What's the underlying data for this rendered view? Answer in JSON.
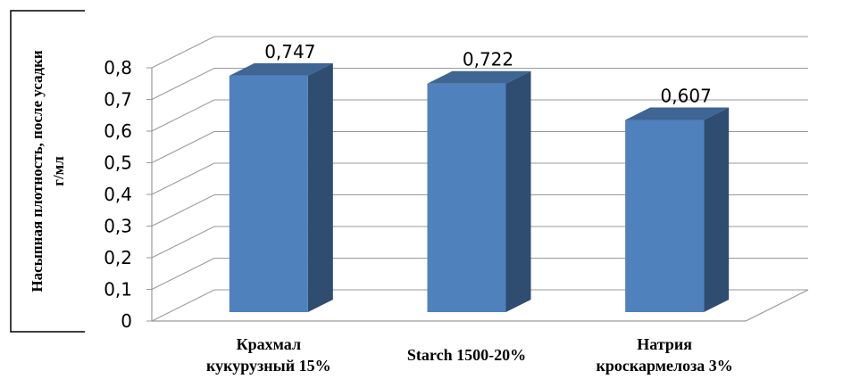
{
  "chart_data": {
    "type": "bar3d",
    "y_label": "Насыпная плотность, после усадки\nг/мл",
    "categories": [
      "Крахмал\nкукурузный 15%",
      "Starch 1500-20%",
      "Натрия\nкроскармелоза 3%"
    ],
    "values": [
      0.747,
      0.722,
      0.607
    ],
    "value_labels": [
      "0,747",
      "0,722",
      "0,607"
    ],
    "color": "#4f81bd",
    "ylim": [
      0,
      0.8
    ],
    "yticks": [
      0,
      {
        "value": 0.1,
        "label": "0,1"
      },
      {
        "value": 0.2,
        "label": "0,2"
      },
      {
        "value": 0.3,
        "label": "0,3"
      },
      {
        "value": 0.4,
        "label": "0,4"
      },
      {
        "value": 0.5,
        "label": "0,5"
      },
      {
        "value": 0.6,
        "label": "0,6"
      },
      {
        "value": 0.7,
        "label": "0,7"
      },
      {
        "value": 0.8,
        "label": "0,8"
      }
    ],
    "grid": true
  }
}
